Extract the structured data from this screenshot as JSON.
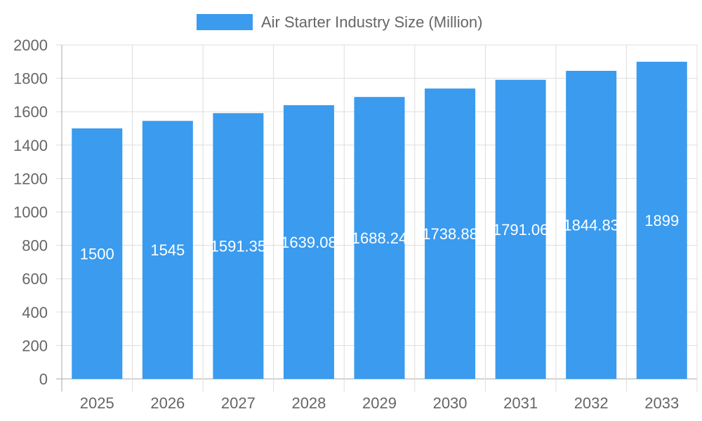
{
  "chart_data": {
    "type": "bar",
    "categories": [
      "2025",
      "2026",
      "2027",
      "2028",
      "2029",
      "2030",
      "2031",
      "2032",
      "2033"
    ],
    "series": [
      {
        "name": "Air Starter Industry Size (Million)",
        "values": [
          1500,
          1545,
          1591.35,
          1639.08,
          1688.24,
          1738.88,
          1791.06,
          1844.83,
          1899
        ],
        "data_labels": [
          "1500",
          "1545",
          "1591.35",
          "1639.08",
          "1688.24",
          "1738.88",
          "1791.06",
          "1844.83",
          "1899"
        ]
      }
    ],
    "ylim": [
      0,
      2000
    ],
    "yticks": [
      "0",
      "200",
      "400",
      "600",
      "800",
      "1000",
      "1200",
      "1400",
      "1600",
      "1800",
      "2000"
    ],
    "xlabel": "",
    "ylabel": "",
    "grid": true,
    "legend_position": "top",
    "bar_color": "#3a9bef"
  }
}
